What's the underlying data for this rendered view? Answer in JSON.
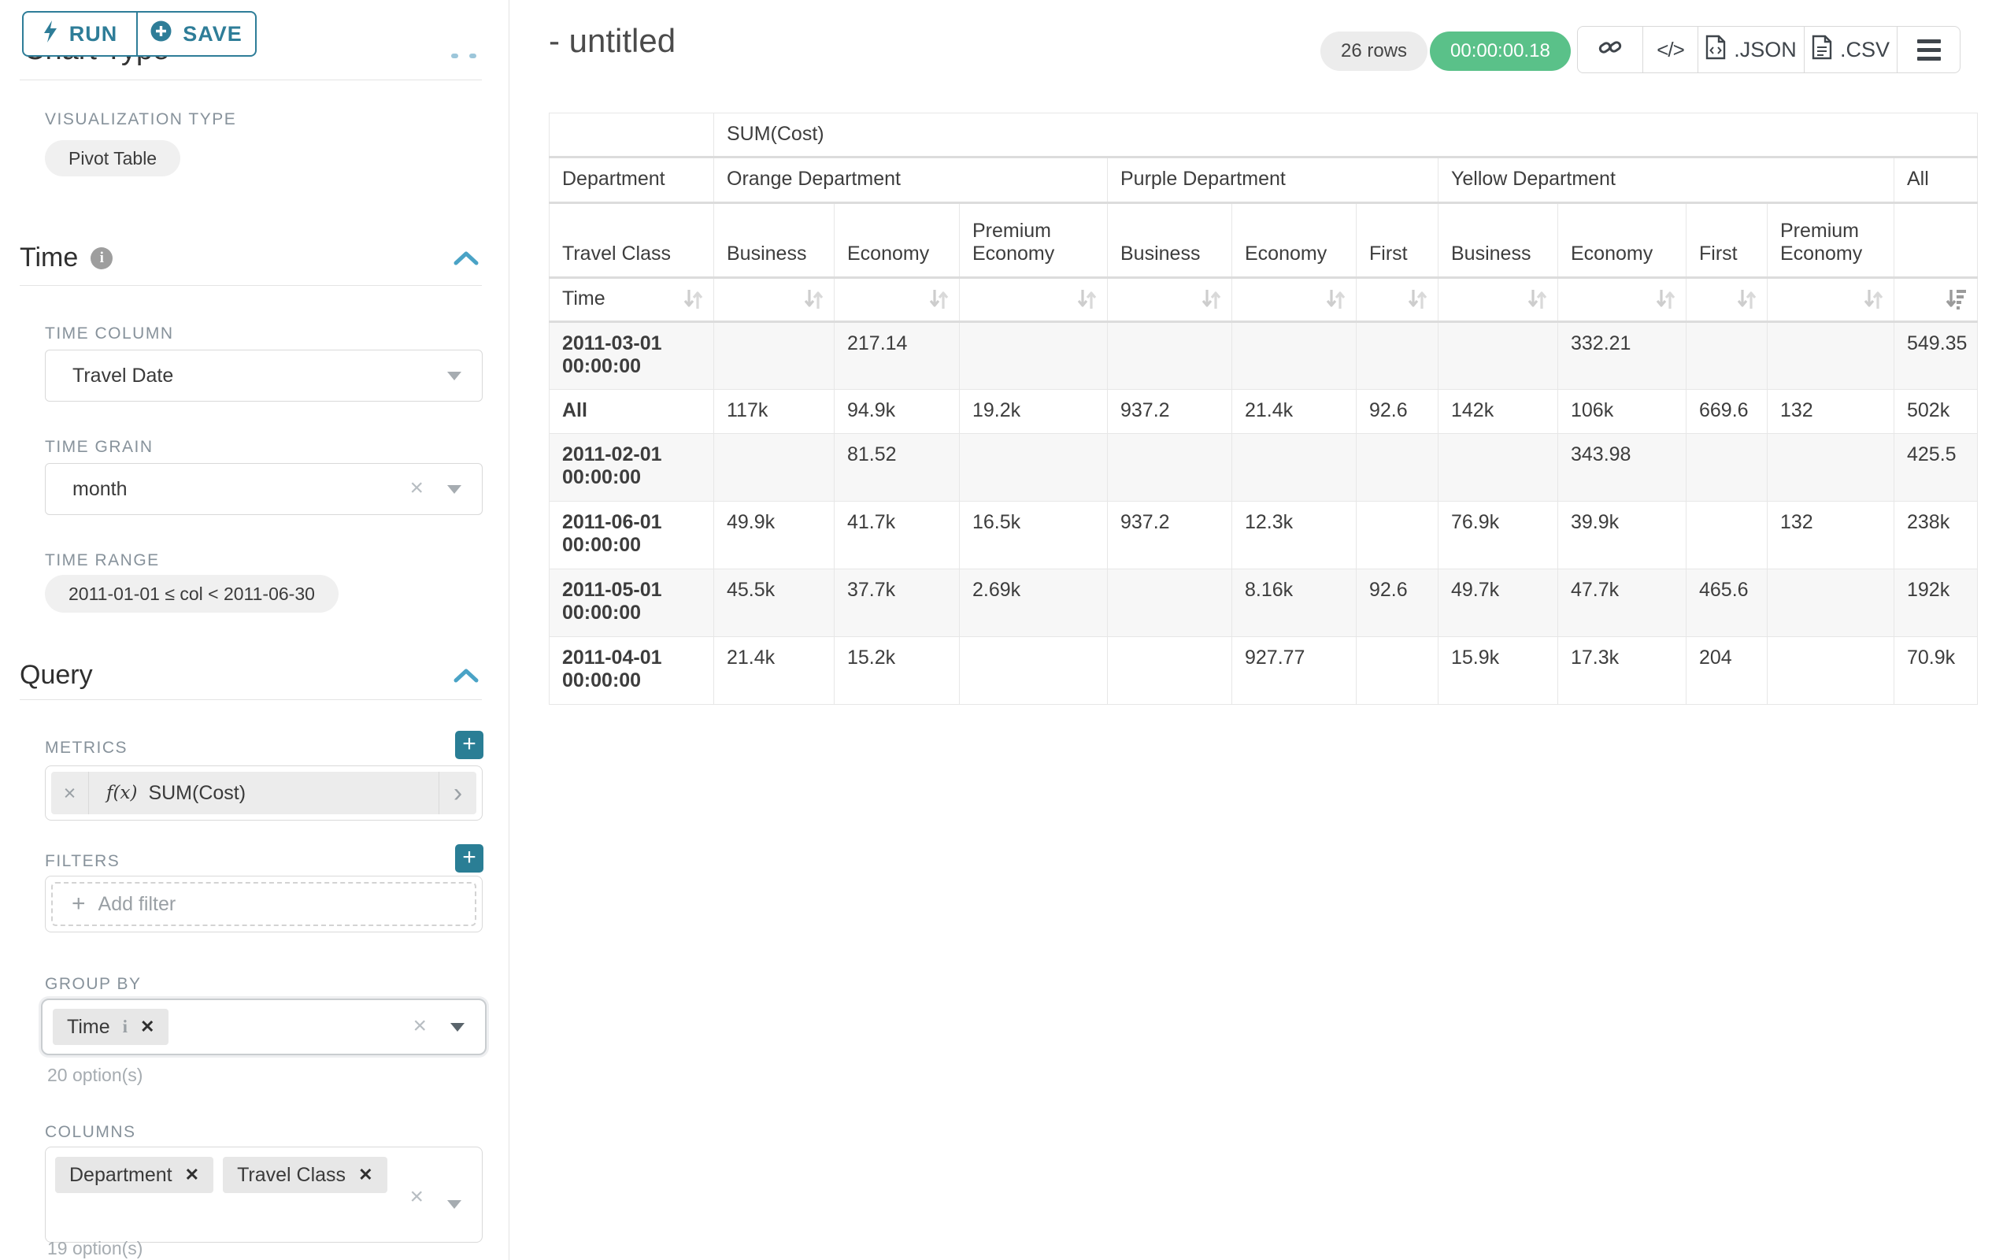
{
  "colors": {
    "accent": "#2e7d98",
    "accent_light": "#4aa3c6",
    "plus_btn": "#2a7e95",
    "success": "#5ac189",
    "stripe": "#f7f7f7"
  },
  "panel": {
    "run_label": "RUN",
    "save_label": "SAVE",
    "chart_type_title": "Chart Type",
    "viz_type_label": "VISUALIZATION TYPE",
    "viz_type_value": "Pivot Table",
    "time": {
      "title": "Time",
      "time_column_label": "TIME COLUMN",
      "time_column_value": "Travel Date",
      "time_grain_label": "TIME GRAIN",
      "time_grain_value": "month",
      "time_range_label": "TIME RANGE",
      "time_range_value": "2011-01-01 ≤ col < 2011-06-30"
    },
    "query": {
      "title": "Query",
      "metrics_label": "METRICS",
      "metric_fx": "f(x)",
      "metric_value": "SUM(Cost)",
      "filters_label": "FILTERS",
      "add_filter_label": "Add filter",
      "group_by_label": "GROUP BY",
      "group_by_chips": [
        "Time"
      ],
      "group_by_options": "20 option(s)",
      "columns_label": "COLUMNS",
      "columns_chips": [
        "Department",
        "Travel Class"
      ],
      "columns_options": "19 option(s)"
    }
  },
  "header": {
    "title": "- untitled",
    "rows_badge": "26 rows",
    "timer": "00:00:00.18",
    "export_json_label": ".JSON",
    "export_csv_label": ".CSV"
  },
  "chart_data": {
    "type": "table",
    "title": "SUM(Cost)",
    "corner": {
      "department": "Department",
      "travel_class": "Travel Class",
      "time": "Time"
    },
    "col_groups": [
      {
        "label": "Orange Department",
        "cols": [
          "Business",
          "Economy",
          "Premium Economy"
        ]
      },
      {
        "label": "Purple Department",
        "cols": [
          "Business",
          "Economy",
          "First"
        ]
      },
      {
        "label": "Yellow Department",
        "cols": [
          "Business",
          "Economy",
          "First",
          "Premium Economy"
        ]
      },
      {
        "label": "All",
        "cols": [
          ""
        ]
      }
    ],
    "sorted_column": "All",
    "sort_direction": "desc",
    "rows": [
      {
        "label": "2011-03-01 00:00:00",
        "values": [
          "",
          "217.14",
          "",
          "",
          "",
          "",
          "",
          "332.21",
          "",
          "",
          "549.35"
        ]
      },
      {
        "label": "All",
        "values": [
          "117k",
          "94.9k",
          "19.2k",
          "937.2",
          "21.4k",
          "92.6",
          "142k",
          "106k",
          "669.6",
          "132",
          "502k"
        ]
      },
      {
        "label": "2011-02-01 00:00:00",
        "values": [
          "",
          "81.52",
          "",
          "",
          "",
          "",
          "",
          "343.98",
          "",
          "",
          "425.5"
        ]
      },
      {
        "label": "2011-06-01 00:00:00",
        "values": [
          "49.9k",
          "41.7k",
          "16.5k",
          "937.2",
          "12.3k",
          "",
          "76.9k",
          "39.9k",
          "",
          "132",
          "238k"
        ]
      },
      {
        "label": "2011-05-01 00:00:00",
        "values": [
          "45.5k",
          "37.7k",
          "2.69k",
          "",
          "8.16k",
          "92.6",
          "49.7k",
          "47.7k",
          "465.6",
          "",
          "192k"
        ]
      },
      {
        "label": "2011-04-01 00:00:00",
        "values": [
          "21.4k",
          "15.2k",
          "",
          "",
          "927.77",
          "",
          "15.9k",
          "17.3k",
          "204",
          "",
          "70.9k"
        ]
      }
    ]
  }
}
